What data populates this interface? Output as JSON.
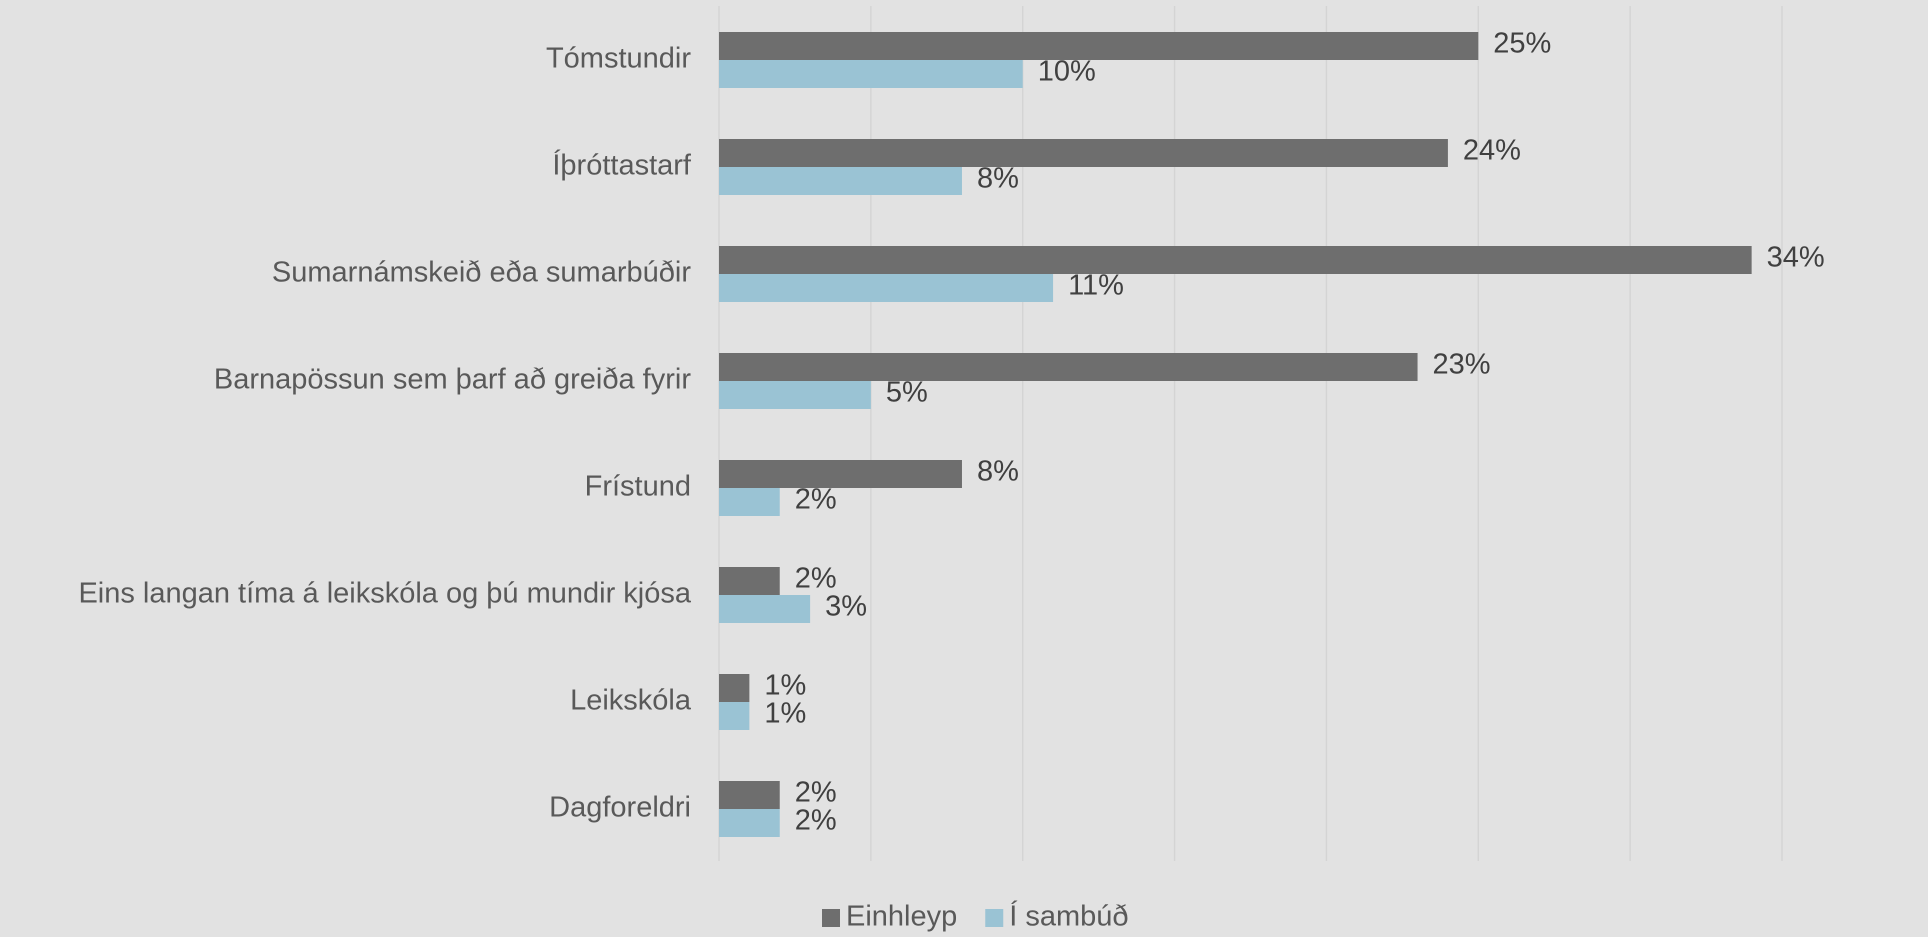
{
  "chart_data": {
    "type": "hbar",
    "categories": [
      "Tómstundir",
      "Íþróttastarf",
      "Sumarnámskeið eða sumarbúðir",
      "Barnapössun sem þarf að greiða fyrir",
      "Frístund",
      "Eins langan tíma á leikskóla og þú mundir kjósa",
      "Leikskóla",
      "Dagforeldri"
    ],
    "series": [
      {
        "name": "Einhleyp",
        "color": "#6e6e6e",
        "values": [
          25,
          24,
          34,
          23,
          8,
          2,
          1,
          2
        ],
        "value_labels": [
          "25%",
          "24%",
          "34%",
          "23%",
          "8%",
          "2%",
          "1%",
          "2%"
        ]
      },
      {
        "name": "Í sambúð",
        "color": "#9ac3d4",
        "values": [
          10,
          8,
          11,
          5,
          2,
          3,
          1,
          2
        ],
        "value_labels": [
          "10%",
          "8%",
          "11%",
          "5%",
          "2%",
          "3%",
          "1%",
          "2%"
        ]
      }
    ],
    "xlim": [
      0,
      35
    ],
    "gridlines": [
      0,
      5,
      10,
      15,
      20,
      25,
      30,
      35
    ],
    "grid": true,
    "legend": "bottom"
  }
}
